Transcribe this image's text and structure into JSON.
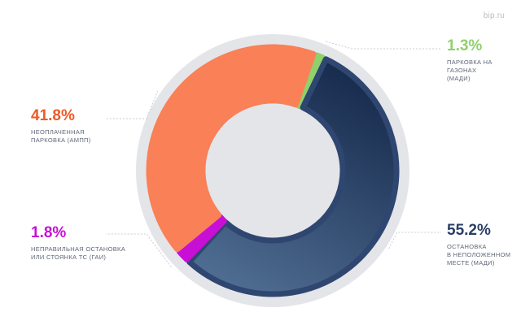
{
  "watermark": "bip.ru",
  "chart_data": {
    "type": "pie",
    "donut": true,
    "title": "",
    "slices": [
      {
        "label": "ПАРКОВКА НА\nГАЗОНАХ\n(МАДИ)",
        "value": 1.3,
        "value_text": "1.3%",
        "color": "#8fd16a"
      },
      {
        "label": "ОСТАНОВКА\nВ НЕПОЛОЖЕННОМ\nМЕСТЕ (МАДИ)",
        "value": 55.2,
        "value_text": "55.2%",
        "color": "#2a3f66",
        "text_color": "#2a3f66"
      },
      {
        "label": "НЕПРАВИЛЬНАЯ ОСТАНОВКА\nИЛИ СТОЯНКА ТС (ГАИ)",
        "value": 1.8,
        "value_text": "1.8%",
        "color": "#c80fd6"
      },
      {
        "label": "НЕОПЛАЧЕННАЯ\nПАРКОВКА (АМПП)",
        "value": 41.8,
        "value_text": "41.8%",
        "color": "#f98057",
        "text_color": "#ee5a26"
      }
    ]
  }
}
